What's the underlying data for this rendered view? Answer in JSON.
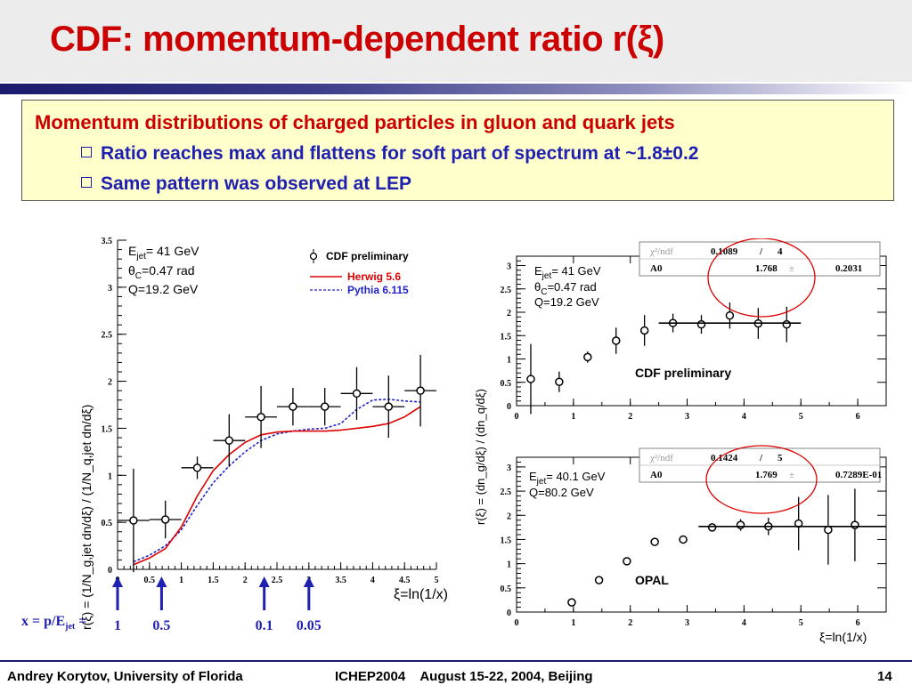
{
  "title": "CDF: momentum-dependent ratio r(ξ)",
  "box": {
    "line1": "Momentum distributions of charged particles in gluon and quark jets",
    "bullet1": "Ratio reaches max and flattens for soft part of spectrum at ~1.8±0.2",
    "bullet2": "Same pattern was observed at LEP"
  },
  "footer": {
    "author": "Andrey Korytov, University of Florida",
    "conf": "ICHEP2004    August 15-22, 2004, Beijing",
    "page": "14"
  },
  "colors": {
    "title": "#cc0000",
    "bullet": "#1f1fb0",
    "herwig": "#dd0000",
    "pythia": "#2222cc",
    "box_bg": "#ffffcc"
  },
  "chart_data": [
    {
      "type": "scatter",
      "ylabel": "r(ξ) = (1/N_g,jet dn/dξ) / (1/N_q,jet dn/dξ)",
      "xlabel": "ξ=ln(1/x)",
      "xlim": [
        0,
        5
      ],
      "ylim": [
        0,
        3.5
      ],
      "xticks": [
        "0",
        "0.5",
        "1",
        "1.5",
        "2",
        "2.5",
        "3",
        "3.5",
        "4",
        "4.5",
        "5"
      ],
      "yticks": [
        "0",
        "0.5",
        "1",
        "1.5",
        "2",
        "2.5",
        "3",
        "3.5"
      ],
      "info": {
        "ejet_label": "E",
        "ejet_sub": "jet",
        "ejet_val": "= 41 GeV",
        "theta_label": "θ",
        "theta_sub": "C",
        "theta_val": "=0.47 rad",
        "q": "Q=19.2 GeV"
      },
      "legend": {
        "data": "CDF preliminary",
        "herwig": "Herwig 5.6",
        "pythia": "Pythia 6.115"
      },
      "series": [
        {
          "name": "CDF preliminary",
          "x": [
            0.25,
            0.75,
            1.25,
            1.75,
            2.25,
            2.75,
            3.25,
            3.75,
            4.25,
            4.75
          ],
          "y": [
            0.52,
            0.53,
            1.08,
            1.37,
            1.62,
            1.73,
            1.73,
            1.87,
            1.73,
            1.9
          ],
          "yerr": [
            0.55,
            0.2,
            0.12,
            0.28,
            0.33,
            0.2,
            0.2,
            0.28,
            0.33,
            0.38
          ]
        },
        {
          "name": "Herwig 5.6",
          "x": [
            0.25,
            0.5,
            0.75,
            1.0,
            1.25,
            1.5,
            1.75,
            2.0,
            2.25,
            2.5,
            2.75,
            3.0,
            3.25,
            3.5,
            3.75,
            4.0,
            4.25,
            4.5,
            4.75
          ],
          "y": [
            0.05,
            0.12,
            0.22,
            0.45,
            0.78,
            1.05,
            1.22,
            1.35,
            1.43,
            1.46,
            1.47,
            1.47,
            1.47,
            1.48,
            1.5,
            1.52,
            1.55,
            1.62,
            1.73
          ]
        },
        {
          "name": "Pythia 6.115",
          "x": [
            0.25,
            0.5,
            0.75,
            1.0,
            1.25,
            1.5,
            1.75,
            2.0,
            2.25,
            2.5,
            2.75,
            3.0,
            3.25,
            3.5,
            3.75,
            4.0,
            4.25,
            4.5,
            4.75
          ],
          "y": [
            0.08,
            0.15,
            0.25,
            0.42,
            0.68,
            0.92,
            1.1,
            1.25,
            1.37,
            1.44,
            1.47,
            1.49,
            1.5,
            1.55,
            1.7,
            1.8,
            1.81,
            1.79,
            1.78
          ]
        }
      ],
      "x_arrows": {
        "label": "x = p/E",
        "label_sub": "jet",
        "label_eq": "=",
        "at_xi": [
          0,
          0.69,
          2.3,
          3.0
        ],
        "labels": [
          "1",
          "0.5",
          "0.1",
          "0.05"
        ]
      }
    },
    {
      "type": "scatter",
      "ylabel": "r(ξ) = (dn_g/dξ) / (dn_q/dξ)",
      "xlim": [
        0,
        6.5
      ],
      "ylim": [
        0,
        3.2
      ],
      "xticks": [
        "0",
        "1",
        "2",
        "3",
        "4",
        "5",
        "6"
      ],
      "yticks": [
        "0",
        "0.5",
        "1",
        "1.5",
        "2",
        "2.5",
        "3"
      ],
      "info": {
        "ejet_label": "E",
        "ejet_sub": "jet",
        "ejet_val": "= 41 GeV",
        "theta_label": "θ",
        "theta_sub": "C",
        "theta_val": "=0.47 rad",
        "q": "Q=19.2 GeV"
      },
      "fitbox": {
        "r1c1": "χ²/ndf",
        "r1c2": "0.1089",
        "r1c3": "/",
        "r1c4": "4",
        "r2c1": "A0",
        "r2c2": "1.768",
        "r2c3": "±",
        "r2c4": "0.2031"
      },
      "label": "CDF preliminary",
      "x": [
        0.25,
        0.75,
        1.25,
        1.75,
        2.25,
        2.75,
        3.25,
        3.75,
        4.25,
        4.75
      ],
      "y": [
        0.57,
        0.51,
        1.04,
        1.39,
        1.61,
        1.77,
        1.74,
        1.93,
        1.76,
        1.74
      ],
      "yerr": [
        0.75,
        0.22,
        0.12,
        0.28,
        0.33,
        0.2,
        0.2,
        0.28,
        0.33,
        0.38
      ],
      "fit": {
        "x": [
          2.5,
          5.0
        ],
        "y": 1.768
      }
    },
    {
      "type": "scatter",
      "xlabel": "ξ=ln(1/x)",
      "xlim": [
        0,
        6.5
      ],
      "ylim": [
        0,
        3.2
      ],
      "xticks": [
        "0",
        "1",
        "2",
        "3",
        "4",
        "5",
        "6"
      ],
      "yticks": [
        "0",
        "0.5",
        "1",
        "1.5",
        "2",
        "2.5",
        "3"
      ],
      "info": {
        "ejet_label": "E",
        "ejet_sub": "jet",
        "ejet_val": "= 40.1 GeV",
        "q": "Q=80.2 GeV"
      },
      "fitbox": {
        "r1c1": "χ²/ndf",
        "r1c2": "0.1424",
        "r1c3": "/",
        "r1c4": "5",
        "r2c1": "A0",
        "r2c2": "1.769",
        "r2c3": "±",
        "r2c4": "0.7289E-01"
      },
      "label": "OPAL",
      "x": [
        0.97,
        1.45,
        1.94,
        2.43,
        2.93,
        3.44,
        3.94,
        4.43,
        4.96,
        5.48,
        5.95
      ],
      "y": [
        0.2,
        0.66,
        1.05,
        1.45,
        1.5,
        1.75,
        1.8,
        1.77,
        1.83,
        1.7,
        1.8
      ],
      "yerr": [
        0.04,
        0.05,
        0.05,
        0.06,
        0.06,
        0.08,
        0.12,
        0.18,
        0.55,
        0.72,
        0.75
      ],
      "fit": {
        "x": [
          3.2,
          6.5
        ],
        "y": 1.769
      }
    }
  ]
}
